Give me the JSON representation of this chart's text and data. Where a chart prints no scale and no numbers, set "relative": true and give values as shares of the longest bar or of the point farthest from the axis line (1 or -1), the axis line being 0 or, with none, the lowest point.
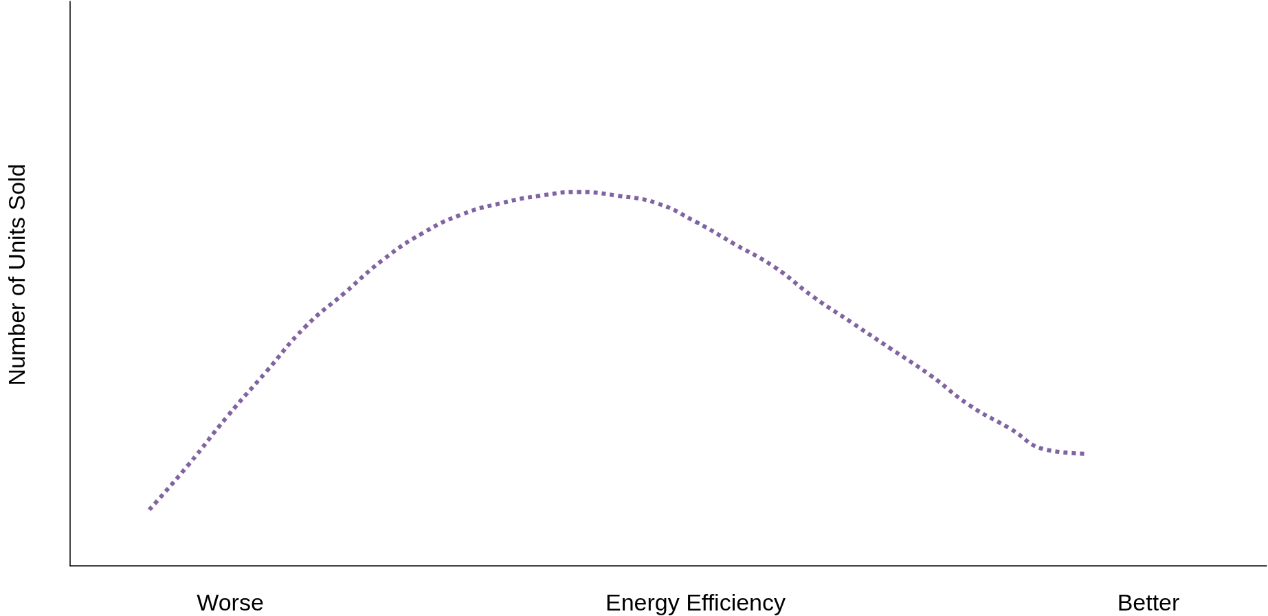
{
  "chart_data": {
    "type": "line",
    "relative": true,
    "xlabel": "Energy Efficiency",
    "ylabel": "Number of Units Sold",
    "annotations": [
      "Worse",
      "Better"
    ],
    "categories": [
      null,
      null,
      null,
      null,
      null,
      null,
      null,
      null,
      null,
      null,
      null,
      null,
      null,
      null,
      null,
      null,
      null,
      null,
      null,
      null,
      null,
      null,
      null,
      null,
      null
    ],
    "series": [
      {
        "color": "#8064a2",
        "values": [
          0.15,
          0.27,
          0.4,
          0.52,
          0.64,
          0.73,
          0.82,
          0.89,
          0.94,
          0.97,
          0.99,
          1,
          0.99,
          0.97,
          0.92,
          0.86,
          0.8,
          0.72,
          0.65,
          0.58,
          0.51,
          0.43,
          0.37,
          0.31,
          0.3
        ]
      }
    ],
    "marker": "none",
    "line_style": "dotted",
    "grid": false
  }
}
